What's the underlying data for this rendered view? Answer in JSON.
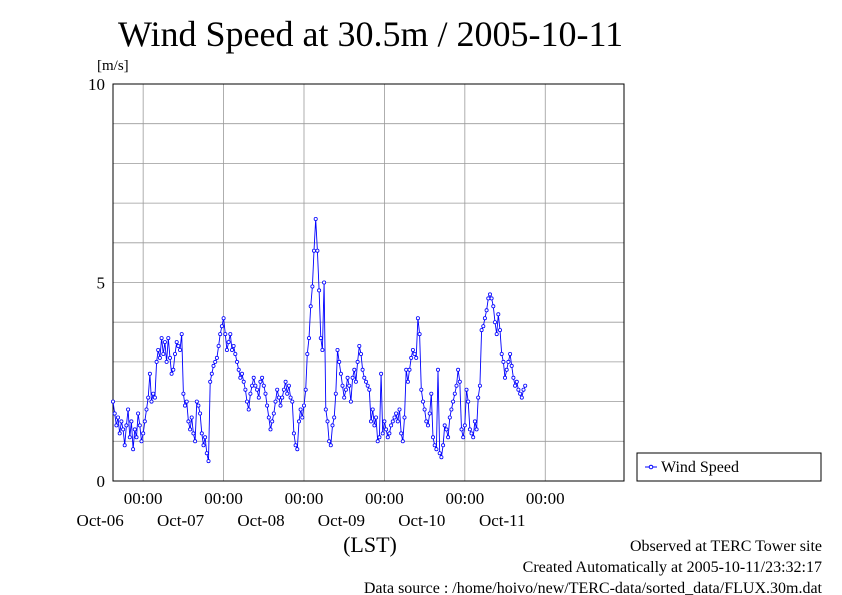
{
  "chart_data": {
    "type": "line",
    "title": "Wind Speed at 30.5m / 2005-10-11",
    "ylabel": "[m/s]",
    "xlabel": "(LST)",
    "ylim": [
      0,
      10
    ],
    "yticks": [
      "0",
      "5",
      "10"
    ],
    "xlim": [
      "2005-10-05T15:00",
      "2005-10-11T23:30"
    ],
    "xticks": [
      {
        "time": "00:00",
        "date": "Oct-06"
      },
      {
        "time": "00:00",
        "date": "Oct-07"
      },
      {
        "time": "00:00",
        "date": "Oct-08"
      },
      {
        "time": "00:00",
        "date": "Oct-09"
      },
      {
        "time": "00:00",
        "date": "Oct-10"
      },
      {
        "time": "00:00",
        "date": "Oct-11"
      }
    ],
    "grid": true,
    "legend_position": "right",
    "series": [
      {
        "name": "Wind Speed",
        "color": "#0000ff",
        "interval_minutes": 30,
        "start": "2005-10-05T15:00",
        "values": [
          2.0,
          1.7,
          1.4,
          1.6,
          1.2,
          1.5,
          1.3,
          0.9,
          1.4,
          1.8,
          1.1,
          1.5,
          0.8,
          1.3,
          1.1,
          1.7,
          1.4,
          1.0,
          1.2,
          1.5,
          1.8,
          2.1,
          2.7,
          2.0,
          2.2,
          2.1,
          3.0,
          3.3,
          3.1,
          3.6,
          3.2,
          3.5,
          3.0,
          3.6,
          3.1,
          2.7,
          2.8,
          3.2,
          3.5,
          3.4,
          3.3,
          3.7,
          2.2,
          1.9,
          2.0,
          1.5,
          1.3,
          1.6,
          1.2,
          1.0,
          2.0,
          1.9,
          1.7,
          1.2,
          0.9,
          1.1,
          0.7,
          0.5,
          2.5,
          2.7,
          2.9,
          3.0,
          3.1,
          3.4,
          3.7,
          3.9,
          4.1,
          3.7,
          3.3,
          3.5,
          3.7,
          3.3,
          3.4,
          3.2,
          3.0,
          2.8,
          2.6,
          2.7,
          2.5,
          2.3,
          2.0,
          1.8,
          2.2,
          2.4,
          2.6,
          2.4,
          2.3,
          2.1,
          2.5,
          2.6,
          2.4,
          2.2,
          1.9,
          1.6,
          1.3,
          1.5,
          1.7,
          2.0,
          2.3,
          2.1,
          1.9,
          2.1,
          2.3,
          2.5,
          2.2,
          2.4,
          2.1,
          2.0,
          1.2,
          0.9,
          0.8,
          1.5,
          1.8,
          1.6,
          1.9,
          2.3,
          3.2,
          3.6,
          4.4,
          4.9,
          5.8,
          6.6,
          5.8,
          4.8,
          3.6,
          3.3,
          5.0,
          1.8,
          1.5,
          1.0,
          0.9,
          1.4,
          1.6,
          2.2,
          3.3,
          3.0,
          2.7,
          2.4,
          2.1,
          2.3,
          2.6,
          2.4,
          2.0,
          2.6,
          2.8,
          2.5,
          3.0,
          3.4,
          3.2,
          2.8,
          2.6,
          2.5,
          2.4,
          2.3,
          1.5,
          1.8,
          1.4,
          1.6,
          1.0,
          1.1,
          2.7,
          1.2,
          1.5,
          1.3,
          1.1,
          1.2,
          1.4,
          1.5,
          1.6,
          1.7,
          1.5,
          1.8,
          1.2,
          1.0,
          1.6,
          2.8,
          2.5,
          2.8,
          3.1,
          3.3,
          3.2,
          3.1,
          4.1,
          3.7,
          2.3,
          2.0,
          1.8,
          1.5,
          1.4,
          1.7,
          2.2,
          1.1,
          0.9,
          0.8,
          2.8,
          0.7,
          0.6,
          0.9,
          1.4,
          1.3,
          1.1,
          1.6,
          1.8,
          2.0,
          2.2,
          2.4,
          2.8,
          2.5,
          1.3,
          1.1,
          1.4,
          2.3,
          2.0,
          1.3,
          1.2,
          1.1,
          1.5,
          1.3,
          2.1,
          2.4,
          3.8,
          3.9,
          4.1,
          4.3,
          4.6,
          4.7,
          4.6,
          4.4,
          4.0,
          3.7,
          4.2,
          3.8,
          3.2,
          3.0,
          2.6,
          2.8,
          3.0,
          3.2,
          2.9,
          2.6,
          2.4,
          2.5,
          2.3,
          2.2,
          2.1,
          2.3,
          2.4
        ]
      }
    ]
  },
  "footer": {
    "site": "Observed at TERC Tower site",
    "created": "Created Automatically at 2005-10-11/23:32:17",
    "source": "Data source : /home/hoivo/new/TERC-data/sorted_data/FLUX.30m.dat"
  }
}
